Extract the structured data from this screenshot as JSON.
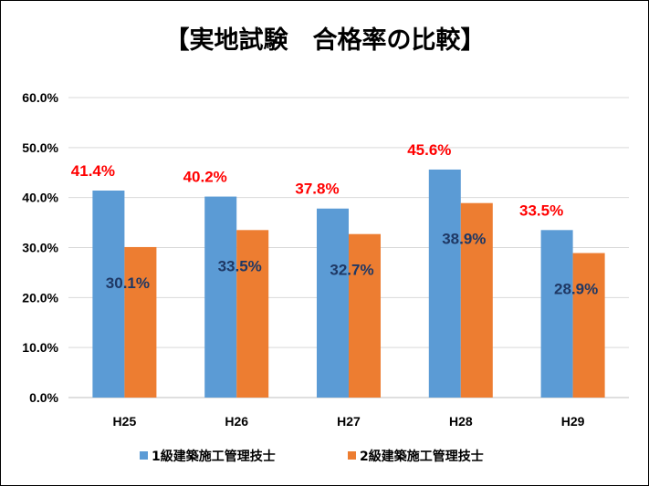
{
  "chart_data": {
    "type": "bar",
    "title": "【実地試験　合格率の比較】",
    "categories": [
      "H25",
      "H26",
      "H27",
      "H28",
      "H29"
    ],
    "series": [
      {
        "name": "1級建築施工管理技士",
        "values": [
          41.4,
          40.2,
          37.8,
          45.6,
          33.5
        ],
        "labels": [
          "41.4%",
          "40.2%",
          "37.8%",
          "45.6%",
          "33.5%"
        ],
        "color": "#5B9BD5",
        "label_color": "#FF0000"
      },
      {
        "name": "2級建築施工管理技士",
        "values": [
          30.1,
          33.5,
          32.7,
          38.9,
          28.9
        ],
        "labels": [
          "30.1%",
          "33.5%",
          "32.7%",
          "38.9%",
          "28.9%"
        ],
        "color": "#ED7D31",
        "label_color": "#1F3864"
      }
    ],
    "yticks": [
      "0.0%",
      "10.0%",
      "20.0%",
      "30.0%",
      "40.0%",
      "50.0%",
      "60.0%"
    ],
    "ylim": [
      0,
      60
    ],
    "grid": true,
    "legend_position": "bottom"
  }
}
